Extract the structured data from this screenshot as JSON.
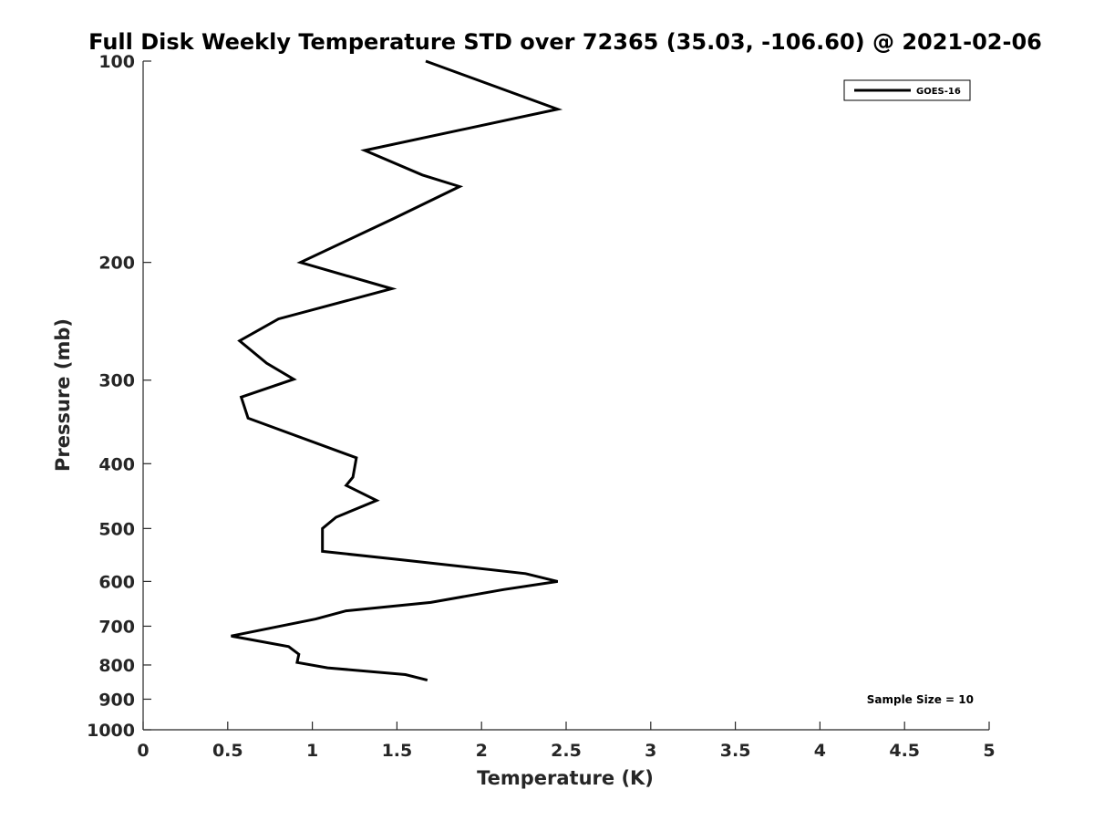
{
  "chart_data": {
    "type": "line",
    "title": "Full Disk Weekly Temperature STD over 72365 (35.03, -106.60) @ 2021-02-06",
    "xlabel": "Temperature (K)",
    "ylabel": "Pressure (mb)",
    "xlim": [
      0,
      5
    ],
    "ylim": [
      100,
      1000
    ],
    "y_scale": "log",
    "y_reversed": true,
    "x_ticks": [
      0,
      0.5,
      1,
      1.5,
      2,
      2.5,
      3,
      3.5,
      4,
      4.5,
      5
    ],
    "x_tick_labels": [
      "0",
      "0.5",
      "1",
      "1.5",
      "2",
      "2.5",
      "3",
      "3.5",
      "4",
      "4.5",
      "5"
    ],
    "y_ticks": [
      100,
      200,
      300,
      400,
      500,
      600,
      700,
      800,
      900,
      1000
    ],
    "y_tick_labels": [
      "100",
      "200",
      "300",
      "400",
      "500",
      "600",
      "700",
      "800",
      "900",
      "1000"
    ],
    "grid": false,
    "legend_position": "top-right",
    "annotation": "Sample Size = 10",
    "series": [
      {
        "name": "GOES-16",
        "color": "#000000",
        "points": [
          {
            "x": 1.67,
            "y": 100
          },
          {
            "x": 2.45,
            "y": 118
          },
          {
            "x": 1.31,
            "y": 136
          },
          {
            "x": 1.65,
            "y": 148
          },
          {
            "x": 1.87,
            "y": 154
          },
          {
            "x": 1.48,
            "y": 172
          },
          {
            "x": 0.93,
            "y": 200
          },
          {
            "x": 1.47,
            "y": 219
          },
          {
            "x": 0.8,
            "y": 243
          },
          {
            "x": 0.57,
            "y": 262
          },
          {
            "x": 0.73,
            "y": 283
          },
          {
            "x": 0.89,
            "y": 299
          },
          {
            "x": 0.58,
            "y": 318
          },
          {
            "x": 0.62,
            "y": 342
          },
          {
            "x": 1.26,
            "y": 392
          },
          {
            "x": 1.24,
            "y": 419
          },
          {
            "x": 1.2,
            "y": 431
          },
          {
            "x": 1.38,
            "y": 454
          },
          {
            "x": 1.14,
            "y": 481
          },
          {
            "x": 1.06,
            "y": 500
          },
          {
            "x": 1.06,
            "y": 515
          },
          {
            "x": 1.06,
            "y": 541
          },
          {
            "x": 1.53,
            "y": 557
          },
          {
            "x": 2.26,
            "y": 584
          },
          {
            "x": 2.45,
            "y": 600
          },
          {
            "x": 2.13,
            "y": 617
          },
          {
            "x": 1.7,
            "y": 645
          },
          {
            "x": 1.2,
            "y": 664
          },
          {
            "x": 1.02,
            "y": 683
          },
          {
            "x": 0.52,
            "y": 724
          },
          {
            "x": 0.86,
            "y": 751
          },
          {
            "x": 0.92,
            "y": 771
          },
          {
            "x": 0.91,
            "y": 793
          },
          {
            "x": 1.09,
            "y": 808
          },
          {
            "x": 1.55,
            "y": 827
          },
          {
            "x": 1.68,
            "y": 843
          }
        ]
      }
    ]
  }
}
